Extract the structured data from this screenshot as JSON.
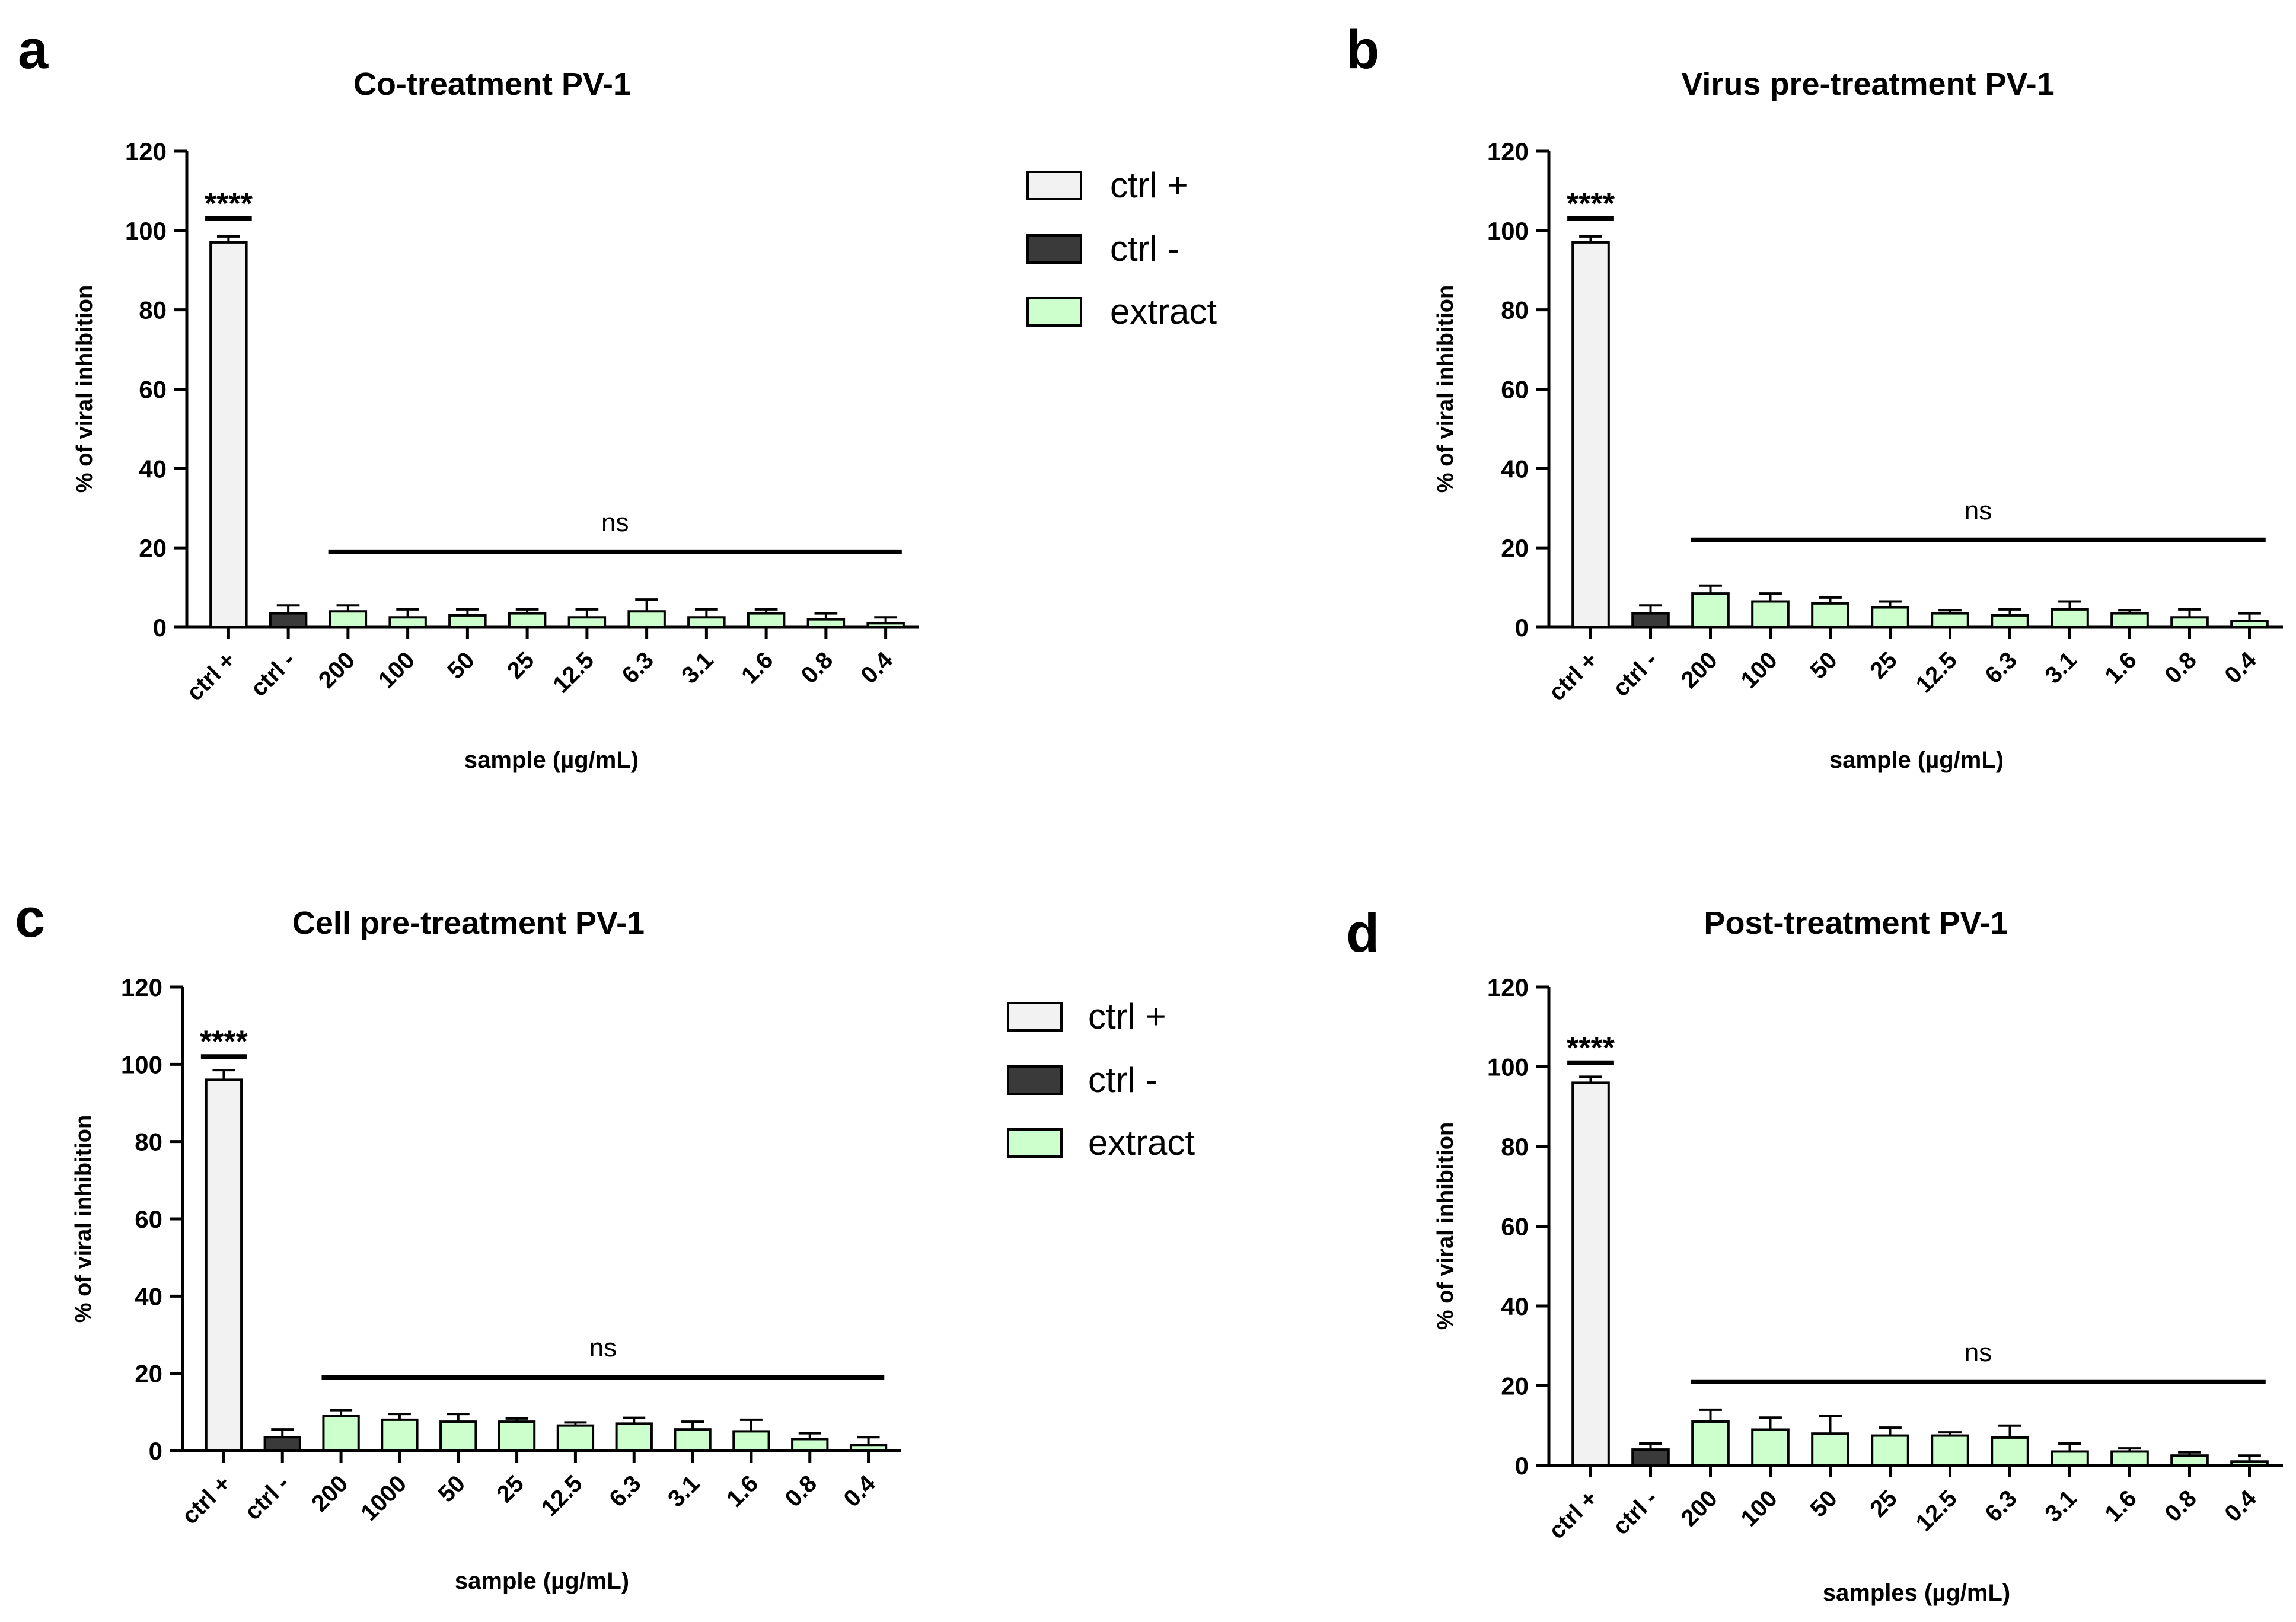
{
  "legend": {
    "items": [
      {
        "label": "ctrl +",
        "color": "#f2f2f2"
      },
      {
        "label": "ctrl -",
        "color": "#3a3a3a"
      },
      {
        "label": "extract",
        "color": "#ccffcc"
      }
    ]
  },
  "chart_data": [
    {
      "panel": "a",
      "type": "bar",
      "title": "Co-treatment PV-1",
      "xlabel": "sample (µg/mL)",
      "ylabel": "% of viral inhibition",
      "ylim": [
        0,
        120
      ],
      "yticks": [
        0,
        20,
        40,
        60,
        80,
        100,
        120
      ],
      "categories": [
        "ctrl +",
        "ctrl -",
        "200",
        "100",
        "50",
        "25",
        "12.5",
        "6.3",
        "3.1",
        "1.6",
        "0.8",
        "0.4"
      ],
      "groups": [
        "ctrl +",
        "ctrl -",
        "extract",
        "extract",
        "extract",
        "extract",
        "extract",
        "extract",
        "extract",
        "extract",
        "extract",
        "extract"
      ],
      "values": [
        97,
        3.5,
        4,
        2.5,
        3,
        3.5,
        2.5,
        4,
        2.5,
        3.5,
        2,
        1
      ],
      "errors": [
        1.5,
        2,
        1.5,
        2,
        1.5,
        1,
        2,
        3,
        2,
        1,
        1.5,
        1.5
      ],
      "annotations": [
        {
          "text": "****",
          "from": 0,
          "to": 0,
          "y": 103
        },
        {
          "text": "ns",
          "from": 2,
          "to": 11,
          "y": 19
        }
      ]
    },
    {
      "panel": "b",
      "type": "bar",
      "title": "Virus pre-treatment PV-1",
      "xlabel": "sample (µg/mL)",
      "ylabel": "% of viral inhibition",
      "ylim": [
        0,
        120
      ],
      "yticks": [
        0,
        20,
        40,
        60,
        80,
        100,
        120
      ],
      "categories": [
        "ctrl +",
        "ctrl -",
        "200",
        "100",
        "50",
        "25",
        "12.5",
        "6.3",
        "3.1",
        "1.6",
        "0.8",
        "0.4"
      ],
      "groups": [
        "ctrl +",
        "ctrl -",
        "extract",
        "extract",
        "extract",
        "extract",
        "extract",
        "extract",
        "extract",
        "extract",
        "extract",
        "extract"
      ],
      "values": [
        97,
        3.5,
        8.5,
        6.5,
        6,
        5,
        3.5,
        3,
        4.5,
        3.5,
        2.5,
        1.5
      ],
      "errors": [
        1.5,
        2,
        2,
        2,
        1.5,
        1.5,
        0.8,
        1.5,
        2,
        0.8,
        2,
        2
      ],
      "annotations": [
        {
          "text": "****",
          "from": 0,
          "to": 0,
          "y": 103
        },
        {
          "text": "ns",
          "from": 2,
          "to": 11,
          "y": 22
        }
      ]
    },
    {
      "panel": "c",
      "type": "bar",
      "title": "Cell pre-treatment PV-1",
      "xlabel": "sample (µg/mL)",
      "ylabel": "% of viral inhibition",
      "ylim": [
        0,
        120
      ],
      "yticks": [
        0,
        20,
        40,
        60,
        80,
        100,
        120
      ],
      "categories": [
        "ctrl +",
        "ctrl -",
        "200",
        "1000",
        "50",
        "25",
        "12.5",
        "6.3",
        "3.1",
        "1.6",
        "0.8",
        "0.4"
      ],
      "groups": [
        "ctrl +",
        "ctrl -",
        "extract",
        "extract",
        "extract",
        "extract",
        "extract",
        "extract",
        "extract",
        "extract",
        "extract",
        "extract"
      ],
      "values": [
        96,
        3.5,
        9,
        8,
        7.5,
        7.5,
        6.5,
        7,
        5.5,
        5,
        3,
        1.5
      ],
      "errors": [
        2.5,
        2,
        1.5,
        1.5,
        2,
        0.8,
        0.8,
        1.5,
        2,
        3,
        1.5,
        2
      ],
      "annotations": [
        {
          "text": "****",
          "from": 0,
          "to": 0,
          "y": 102
        },
        {
          "text": "ns",
          "from": 2,
          "to": 11,
          "y": 19
        }
      ]
    },
    {
      "panel": "d",
      "type": "bar",
      "title": "Post-treatment PV-1",
      "xlabel": "samples (µg/mL)",
      "ylabel": "% of viral inhibition",
      "ylim": [
        0,
        120
      ],
      "yticks": [
        0,
        20,
        40,
        60,
        80,
        100,
        120
      ],
      "categories": [
        "ctrl +",
        "ctrl -",
        "200",
        "100",
        "50",
        "25",
        "12.5",
        "6.3",
        "3.1",
        "1.6",
        "0.8",
        "0.4"
      ],
      "groups": [
        "ctrl +",
        "ctrl -",
        "extract",
        "extract",
        "extract",
        "extract",
        "extract",
        "extract",
        "extract",
        "extract",
        "extract",
        "extract"
      ],
      "values": [
        96,
        4,
        11,
        9,
        8,
        7.5,
        7.5,
        7,
        3.5,
        3.5,
        2.5,
        1
      ],
      "errors": [
        1.5,
        1.5,
        3,
        3,
        4.5,
        2,
        0.8,
        3,
        2,
        0.8,
        0.8,
        1.5
      ],
      "annotations": [
        {
          "text": "****",
          "from": 0,
          "to": 0,
          "y": 101
        },
        {
          "text": "ns",
          "from": 2,
          "to": 11,
          "y": 21
        }
      ]
    }
  ]
}
